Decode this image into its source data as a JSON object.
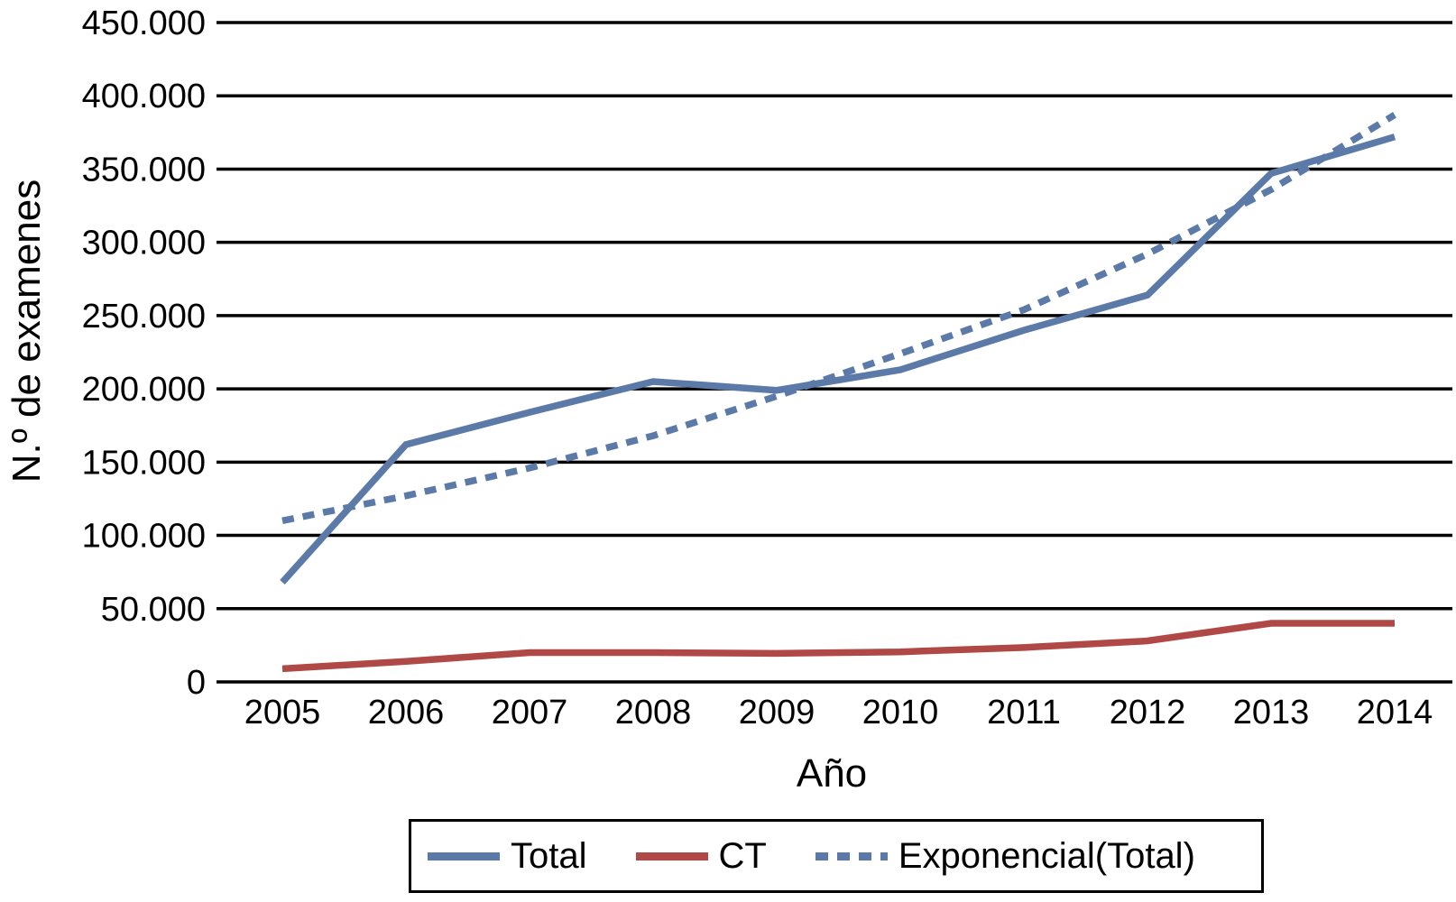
{
  "chart_data": {
    "type": "line",
    "title": "",
    "xlabel": "Año",
    "ylabel": "N.º de examenes",
    "categories": [
      "2005",
      "2006",
      "2007",
      "2008",
      "2009",
      "2010",
      "2011",
      "2012",
      "2013",
      "2014"
    ],
    "series": [
      {
        "name": "Total",
        "style": "solid",
        "color": "#5B7AA8",
        "values": [
          68000,
          162000,
          184000,
          205000,
          199000,
          213000,
          240000,
          264000,
          347000,
          372000
        ]
      },
      {
        "name": "CT",
        "style": "solid",
        "color": "#B04845",
        "values": [
          9000,
          14000,
          20000,
          20000,
          19500,
          20500,
          23500,
          28000,
          40000,
          40000
        ]
      },
      {
        "name": "Exponencial(Total)",
        "style": "dashed",
        "color": "#5B7AA8",
        "values": [
          110000,
          127000,
          146000,
          168000,
          195000,
          224000,
          254000,
          292000,
          336000,
          387000
        ]
      }
    ],
    "ylim": [
      0,
      450000
    ],
    "y_tick_step": 50000,
    "y_tick_labels": [
      "0",
      "50.000",
      "100.000",
      "150.000",
      "200.000",
      "250.000",
      "300.000",
      "350.000",
      "400.000",
      "450.000"
    ],
    "grid": "horizontal-only",
    "gridline_color": "#000000",
    "legend_position": "bottom",
    "legend_entries": [
      "Total",
      "CT",
      "Exponencial(Total)"
    ]
  }
}
